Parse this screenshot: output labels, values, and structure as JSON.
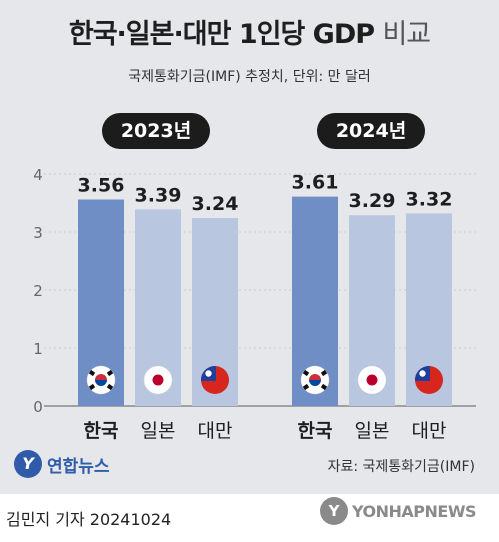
{
  "chart_data": {
    "type": "bar",
    "title_main": "한국·일본·대만 1인당 GDP ",
    "title_suffix": "비교",
    "subtitle": "국제통화기금(IMF) 추정치, 단위: 만 달러",
    "ylim": [
      0,
      4
    ],
    "yticks": [
      "0",
      "1",
      "2",
      "3",
      "4"
    ],
    "grid": true,
    "categories": [
      "한국",
      "일본",
      "대만"
    ],
    "groups": [
      {
        "year": "2023년",
        "values": [
          3.56,
          3.39,
          3.24
        ],
        "labels": [
          "3.56",
          "3.39",
          "3.24"
        ]
      },
      {
        "year": "2024년",
        "values": [
          3.61,
          3.29,
          3.32
        ],
        "labels": [
          "3.61",
          "3.29",
          "3.32"
        ]
      }
    ],
    "flag_icons": [
      "korea-flag-icon",
      "japan-flag-icon",
      "taiwan-flag-icon"
    ],
    "colors": {
      "highlight": "#6f8ec6",
      "normal": "#b8c6e0",
      "panel": "#e5e7ea",
      "grid": "#c9ccd2"
    },
    "source": "자료: 국제통화기금(IMF)"
  },
  "footer": {
    "publisher": "연합뉴스",
    "byline": "김민지 기자  20241024",
    "agency": "YONHAPNEWS"
  }
}
